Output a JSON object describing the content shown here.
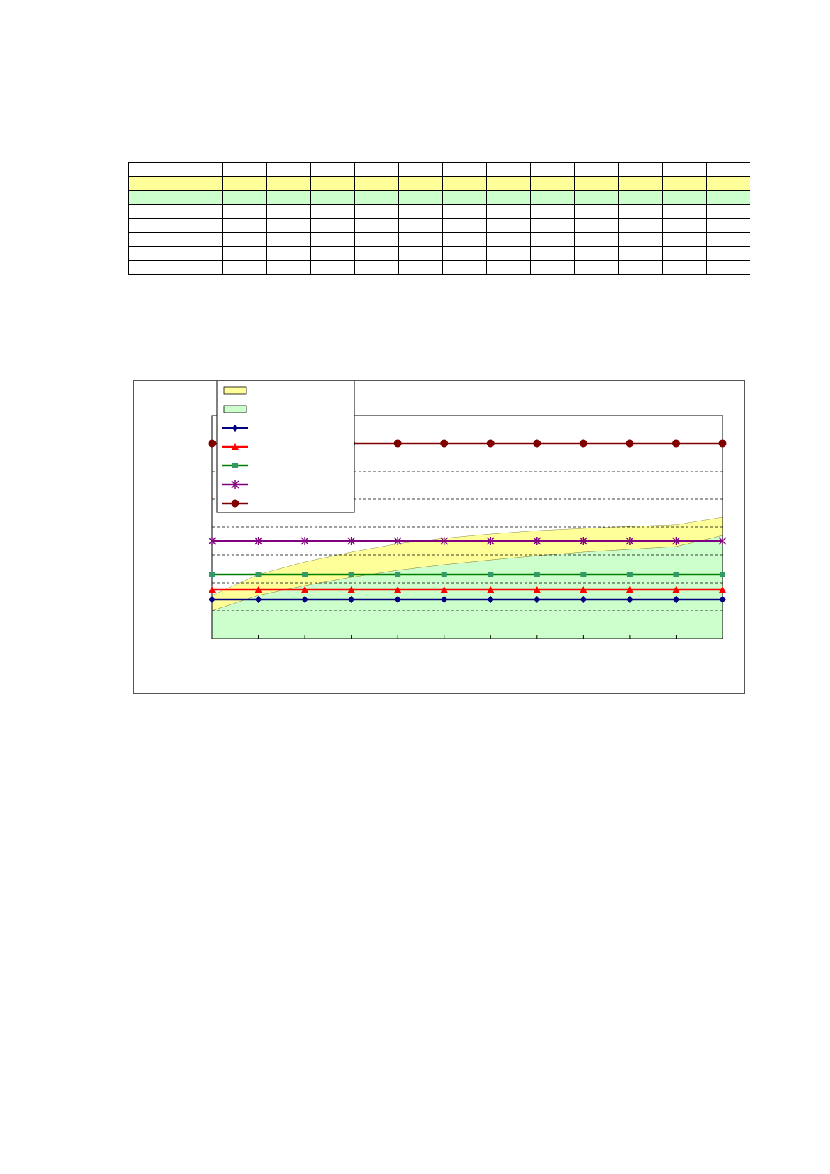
{
  "table": {
    "colors": {
      "row1": "#ffff99",
      "row2": "#ccffcc",
      "border": "#000000"
    },
    "rows": [
      [
        "",
        "",
        "",
        "",
        "",
        "",
        "",
        "",
        "",
        "",
        "",
        "",
        ""
      ],
      [
        "",
        "",
        "",
        "",
        "",
        "",
        "",
        "",
        "",
        "",
        "",
        "",
        ""
      ],
      [
        "",
        "",
        "",
        "",
        "",
        "",
        "",
        "",
        "",
        "",
        "",
        "",
        ""
      ],
      [
        "",
        "",
        "",
        "",
        "",
        "",
        "",
        "",
        "",
        "",
        "",
        "",
        ""
      ],
      [
        "",
        "",
        "",
        "",
        "",
        "",
        "",
        "",
        "",
        "",
        "",
        "",
        ""
      ],
      [
        "",
        "",
        "",
        "",
        "",
        "",
        "",
        "",
        "",
        "",
        "",
        "",
        ""
      ],
      [
        "",
        "",
        "",
        "",
        "",
        "",
        "",
        "",
        "",
        "",
        "",
        "",
        ""
      ],
      [
        "",
        "",
        "",
        "",
        "",
        "",
        "",
        "",
        "",
        "",
        "",
        "",
        ""
      ]
    ]
  },
  "chart_data": {
    "type": "line",
    "title": "",
    "xlabel": "",
    "ylabel": "",
    "x": [
      0,
      1,
      2,
      3,
      4,
      5,
      6,
      7,
      8,
      9,
      10,
      11
    ],
    "xlim": [
      0,
      11
    ],
    "ylim": [
      0,
      8
    ],
    "grid": {
      "y_dashed": true
    },
    "legend": {
      "placement": "top-left"
    },
    "bands": [
      {
        "fill": "#ffff99",
        "lower": [
          1.0,
          1.55,
          1.9,
          2.2,
          2.45,
          2.65,
          2.82,
          2.97,
          3.1,
          3.2,
          3.3,
          3.7
        ],
        "upper": [
          1.55,
          2.3,
          2.75,
          3.1,
          3.4,
          3.6,
          3.75,
          3.87,
          3.95,
          4.02,
          4.08,
          4.35
        ]
      },
      {
        "fill": "#ccffcc",
        "lower": [
          0,
          0,
          0,
          0,
          0,
          0,
          0,
          0,
          0,
          0,
          0,
          0
        ],
        "upper": [
          1.0,
          1.55,
          1.9,
          2.2,
          2.45,
          2.65,
          2.82,
          2.97,
          3.1,
          3.2,
          3.3,
          3.7
        ]
      }
    ],
    "series": [
      {
        "color": "#000080",
        "marker": "diamond",
        "values": [
          1.4,
          1.4,
          1.4,
          1.4,
          1.4,
          1.4,
          1.4,
          1.4,
          1.4,
          1.4,
          1.4,
          1.4
        ]
      },
      {
        "color": "#ff0000",
        "marker": "triangle",
        "values": [
          1.75,
          1.75,
          1.75,
          1.75,
          1.75,
          1.75,
          1.75,
          1.75,
          1.75,
          1.75,
          1.75,
          1.75
        ]
      },
      {
        "color": "#008000",
        "marker": "square",
        "marker_color": "#339966",
        "values": [
          2.3,
          2.3,
          2.3,
          2.3,
          2.3,
          2.3,
          2.3,
          2.3,
          2.3,
          2.3,
          2.3,
          2.3
        ]
      },
      {
        "color": "#800080",
        "marker": "star",
        "values": [
          3.5,
          3.5,
          3.5,
          3.5,
          3.5,
          3.5,
          3.5,
          3.5,
          3.5,
          3.5,
          3.5,
          3.5
        ]
      },
      {
        "color": "#800000",
        "marker": "circle",
        "values": [
          7.0,
          7.0,
          7.0,
          7.0,
          7.0,
          7.0,
          7.0,
          7.0,
          7.0,
          7.0,
          7.0,
          7.0
        ]
      }
    ]
  }
}
